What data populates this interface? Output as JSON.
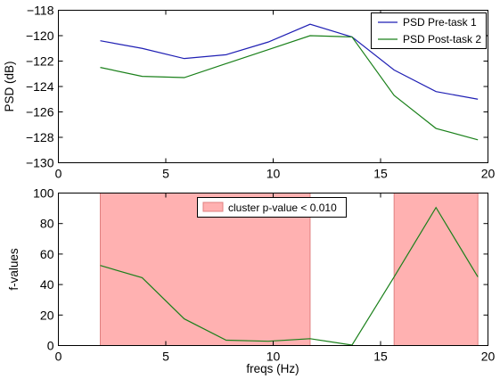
{
  "chart_data": [
    {
      "type": "line",
      "xlim": [
        0,
        20
      ],
      "ylim": [
        -130,
        -118
      ],
      "xticks": [
        0,
        5,
        10,
        15,
        20
      ],
      "yticks": [
        -130,
        -128,
        -126,
        -124,
        -122,
        -120,
        -118
      ],
      "xlabel": "",
      "ylabel": "PSD (dB)",
      "legend": "top-right",
      "grid": false,
      "x": [
        1.95,
        3.9,
        5.86,
        7.81,
        9.77,
        11.72,
        13.67,
        15.63,
        17.58,
        19.53
      ],
      "series": [
        {
          "name": "PSD Pre-task 1",
          "color": "#1f1fb4",
          "values": [
            -120.4,
            -121.0,
            -121.8,
            -121.5,
            -120.5,
            -119.1,
            -120.1,
            -122.7,
            -124.4,
            -125.0
          ]
        },
        {
          "name": "PSD Post-task 2",
          "color": "#1a801a",
          "values": [
            -122.5,
            -123.2,
            -123.3,
            -122.2,
            -121.1,
            -120.0,
            -120.1,
            -124.7,
            -127.3,
            -128.2
          ]
        }
      ]
    },
    {
      "type": "line",
      "xlim": [
        0,
        20
      ],
      "ylim": [
        0,
        100
      ],
      "xticks": [
        0,
        5,
        10,
        15,
        20
      ],
      "yticks": [
        0,
        20,
        40,
        60,
        80,
        100
      ],
      "xlabel": "freqs (Hz)",
      "ylabel": "f-values",
      "legend": "top-center",
      "grid": false,
      "x": [
        1.95,
        3.9,
        5.86,
        7.81,
        9.77,
        11.72,
        13.67,
        15.63,
        17.58,
        19.53
      ],
      "series": [
        {
          "name": "",
          "color": "#1a801a",
          "values": [
            52.5,
            44.5,
            17.5,
            3.5,
            2.8,
            4.5,
            0.3,
            45.0,
            90.5,
            45.0
          ]
        }
      ],
      "shaded_regions": [
        {
          "x0": 1.95,
          "x1": 11.72,
          "label": "cluster p-value < 0.010",
          "color": "#ff9090"
        },
        {
          "x0": 15.63,
          "x1": 19.53,
          "label": "",
          "color": "#ff9090"
        }
      ]
    }
  ]
}
